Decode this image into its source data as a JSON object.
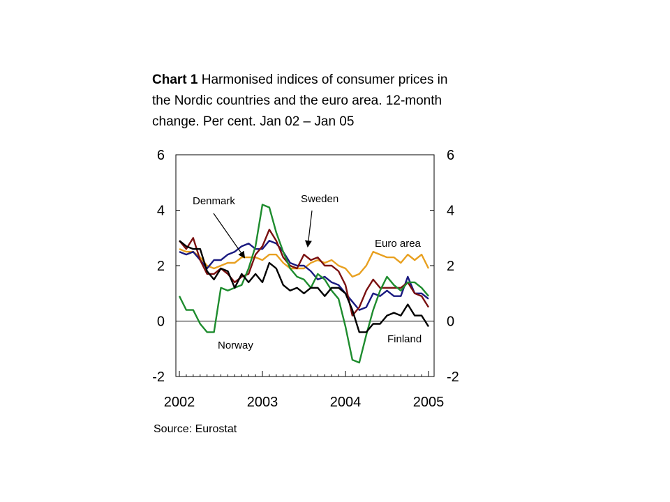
{
  "title": {
    "bold": "Chart 1",
    "rest": "Harmonised indices of consumer prices in the Nordic countries and the euro area. 12-month change. Per cent. Jan 02 – Jan 05"
  },
  "source": "Source: Eurostat",
  "chart_data": {
    "type": "line",
    "x_start": "2002-01",
    "x_end": "2005-01",
    "x_ticks": [
      "2002",
      "2003",
      "2004",
      "2005"
    ],
    "ylim": [
      -2,
      6
    ],
    "y_ticks": [
      6,
      4,
      2,
      0,
      -2
    ],
    "y_tick_labels": [
      "6",
      "4",
      "2",
      "0",
      "-2"
    ],
    "right_axis": true,
    "zero_line": true,
    "grid": false,
    "legend": "inline annotations",
    "series": [
      {
        "name": "Euro area",
        "color": "#E8A020",
        "values": [
          2.6,
          2.5,
          2.5,
          2.3,
          2.0,
          1.9,
          2.0,
          2.1,
          2.1,
          2.3,
          2.3,
          2.3,
          2.2,
          2.4,
          2.4,
          2.1,
          1.9,
          1.9,
          1.9,
          2.1,
          2.2,
          2.1,
          2.2,
          2.0,
          1.9,
          1.6,
          1.7,
          2.0,
          2.5,
          2.4,
          2.3,
          2.3,
          2.1,
          2.4,
          2.2,
          2.4,
          1.9
        ]
      },
      {
        "name": "Denmark",
        "color": "#1A1A80",
        "values": [
          2.5,
          2.4,
          2.5,
          2.2,
          1.9,
          2.2,
          2.2,
          2.4,
          2.5,
          2.7,
          2.8,
          2.6,
          2.6,
          2.9,
          2.8,
          2.5,
          2.1,
          2.0,
          2.0,
          1.8,
          1.5,
          1.6,
          1.4,
          1.3,
          1.0,
          0.7,
          0.4,
          0.5,
          1.0,
          0.9,
          1.1,
          0.9,
          0.9,
          1.6,
          1.0,
          1.0,
          0.8
        ]
      },
      {
        "name": "Sweden",
        "color": "#7A1010",
        "values": [
          2.9,
          2.6,
          3.0,
          2.2,
          1.7,
          1.7,
          1.9,
          1.7,
          1.4,
          1.6,
          1.7,
          2.4,
          2.7,
          3.3,
          2.9,
          2.3,
          2.0,
          1.9,
          2.4,
          2.2,
          2.3,
          2.0,
          2.0,
          1.8,
          1.3,
          0.2,
          0.5,
          1.1,
          1.5,
          1.2,
          1.2,
          1.2,
          1.2,
          1.4,
          1.0,
          0.9,
          0.5
        ]
      },
      {
        "name": "Norway",
        "color": "#1E8C2E",
        "values": [
          0.9,
          0.4,
          0.4,
          -0.1,
          -0.4,
          -0.4,
          1.2,
          1.1,
          1.2,
          1.3,
          1.9,
          2.7,
          4.2,
          4.1,
          3.2,
          2.5,
          1.9,
          1.6,
          1.5,
          1.2,
          1.7,
          1.5,
          1.1,
          0.8,
          -0.2,
          -1.4,
          -1.5,
          -0.5,
          0.4,
          1.1,
          1.6,
          1.3,
          1.1,
          1.4,
          1.4,
          1.2,
          0.9
        ]
      },
      {
        "name": "Finland",
        "color": "#000000",
        "values": [
          2.9,
          2.7,
          2.6,
          2.6,
          1.8,
          1.5,
          1.9,
          1.8,
          1.2,
          1.7,
          1.4,
          1.7,
          1.4,
          2.1,
          1.9,
          1.3,
          1.1,
          1.2,
          1.0,
          1.2,
          1.2,
          0.9,
          1.2,
          1.2,
          1.0,
          0.4,
          -0.4,
          -0.4,
          -0.1,
          -0.1,
          0.2,
          0.3,
          0.2,
          0.6,
          0.2,
          0.2,
          -0.2
        ]
      }
    ],
    "annotations": [
      {
        "label": "Denmark",
        "arrow": true
      },
      {
        "label": "Sweden",
        "arrow": true
      },
      {
        "label": "Euro area",
        "arrow": false
      },
      {
        "label": "Norway",
        "arrow": false
      },
      {
        "label": "Finland",
        "arrow": false
      }
    ]
  }
}
